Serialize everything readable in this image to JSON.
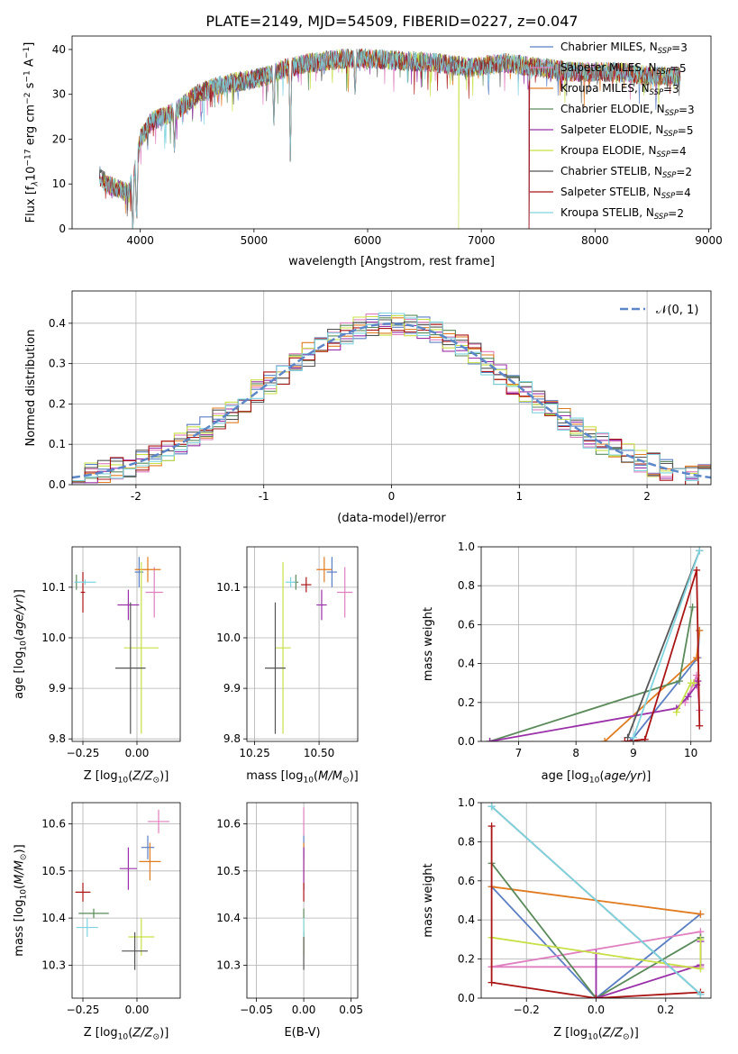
{
  "figure": {
    "title": "PLATE=2149, MJD=54509, FIBERID=0227, z=0.047"
  },
  "colors": {
    "Chabrier MILES": "#5b7fc4",
    "Salpeter MILES": "#e07fbf",
    "Kroupa MILES": "#e07b20",
    "Chabrier ELODIE": "#5a8a5a",
    "Salpeter ELODIE": "#9a30a8",
    "Kroupa ELODIE": "#c8e046",
    "Chabrier STELIB": "#555555",
    "Salpeter STELIB": "#aa1515",
    "Kroupa STELIB": "#7fd4e0",
    "normal": "#5b86c8",
    "grid": "#b0b0b0"
  },
  "chart_data": [
    {
      "id": "spectrum",
      "type": "line",
      "title": "PLATE=2149, MJD=54509, FIBERID=0227, z=0.047",
      "xlabel": "wavelength [Angstrom, rest frame]",
      "ylabel": "Flux [f_λ 10^-17 erg cm^-2 s^-1 A^-1]",
      "xlim": [
        3400,
        9020
      ],
      "ylim": [
        0,
        43
      ],
      "xticks": [
        4000,
        5000,
        6000,
        7000,
        8000,
        9000
      ],
      "yticks": [
        0,
        10,
        20,
        30,
        40
      ],
      "grid": false,
      "legend_position": "top-right",
      "x_range": [
        3640,
        8750
      ],
      "continuum_points": [
        [
          3640,
          12
        ],
        [
          3700,
          10
        ],
        [
          3800,
          9
        ],
        [
          3900,
          8
        ],
        [
          3960,
          14
        ],
        [
          4000,
          20
        ],
        [
          4100,
          24
        ],
        [
          4300,
          26
        ],
        [
          4500,
          30
        ],
        [
          4700,
          32
        ],
        [
          4900,
          33
        ],
        [
          5100,
          34
        ],
        [
          5300,
          36
        ],
        [
          5500,
          37
        ],
        [
          5800,
          38
        ],
        [
          6000,
          38
        ],
        [
          6300,
          37.5
        ],
        [
          6600,
          37
        ],
        [
          6900,
          36
        ],
        [
          7200,
          37
        ],
        [
          7500,
          36
        ],
        [
          7800,
          35
        ],
        [
          8200,
          35
        ],
        [
          8500,
          34
        ],
        [
          8750,
          34
        ]
      ],
      "features": [
        {
          "x": 3934,
          "min": -2
        },
        {
          "x": 3968,
          "min": 0
        },
        {
          "x": 4300,
          "min": 17
        },
        {
          "x": 5175,
          "min": 23
        },
        {
          "x": 5890,
          "min": 30
        },
        {
          "x": 5320,
          "min": 15
        }
      ],
      "series": [
        {
          "name": "Chabrier MILES",
          "legend": "Chabrier MILES, N",
          "nssp": "=3",
          "drop": null
        },
        {
          "name": "Salpeter MILES",
          "legend": "Salpeter MILES, N",
          "nssp": "=5",
          "drop": null
        },
        {
          "name": "Kroupa MILES",
          "legend": "Kroupa MILES, N",
          "nssp": "=3",
          "drop": 7420
        },
        {
          "name": "Chabrier ELODIE",
          "legend": "Chabrier ELODIE, N",
          "nssp": "=3",
          "drop": 7420
        },
        {
          "name": "Salpeter ELODIE",
          "legend": "Salpeter ELODIE, N",
          "nssp": "=5",
          "drop": 7420
        },
        {
          "name": "Kroupa ELODIE",
          "legend": "Kroupa ELODIE, N",
          "nssp": "=4",
          "drop": 6800
        },
        {
          "name": "Chabrier STELIB",
          "legend": "Chabrier STELIB, N",
          "nssp": "=2",
          "drop": null
        },
        {
          "name": "Salpeter STELIB",
          "legend": "Salpeter STELIB, N",
          "nssp": "=4",
          "drop": 7420
        },
        {
          "name": "Kroupa STELIB",
          "legend": "Kroupa STELIB, N",
          "nssp": "=2",
          "drop": null
        }
      ],
      "legend_subscript": "SSP"
    },
    {
      "id": "residuals",
      "type": "histogram",
      "xlabel": "(data-model)/error",
      "ylabel": "Normed distribution",
      "xlim": [
        -2.5,
        2.5
      ],
      "ylim": [
        0,
        0.48
      ],
      "xticks": [
        -2,
        -1,
        0,
        1,
        2
      ],
      "yticks": [
        0.0,
        0.1,
        0.2,
        0.3,
        0.4
      ],
      "grid": true,
      "legend_position": "top-right",
      "normal_label": "𝒩(0, 1)",
      "bin_width": 0.1
    },
    {
      "id": "age_vs_Z",
      "type": "scatter",
      "xlabel": "Z [log10(Z/Z⊙)]",
      "ylabel": "age  [log10(age/yr)]",
      "xlim": [
        -0.3,
        0.2
      ],
      "ylim": [
        9.795,
        10.18
      ],
      "xticks": [
        -0.25,
        0.0
      ],
      "xtick_labels": [
        "−0.25",
        "0.00"
      ],
      "yticks": [
        9.8,
        9.9,
        10.0,
        10.1
      ],
      "ytick_labels": [
        "9.8",
        "9.9",
        "10.0",
        "10.1"
      ],
      "grid": true,
      "points": [
        {
          "series": "Chabrier MILES",
          "x": 0.01,
          "y": 10.13,
          "xerr": 0.02,
          "yerr": 0.03
        },
        {
          "series": "Salpeter MILES",
          "x": 0.08,
          "y": 10.09,
          "xerr": 0.04,
          "yerr": 0.05
        },
        {
          "series": "Kroupa MILES",
          "x": 0.05,
          "y": 10.135,
          "xerr": 0.06,
          "yerr": 0.025
        },
        {
          "series": "Chabrier ELODIE",
          "x": -0.28,
          "y": 10.11,
          "xerr": 0.005,
          "yerr": 0.015
        },
        {
          "series": "Salpeter ELODIE",
          "x": -0.04,
          "y": 10.065,
          "xerr": 0.05,
          "yerr": 0.03
        },
        {
          "series": "Kroupa ELODIE",
          "x": 0.02,
          "y": 9.98,
          "xerr": 0.08,
          "yerr": 0.17
        },
        {
          "series": "Chabrier STELIB",
          "x": -0.03,
          "y": 9.94,
          "xerr": 0.07,
          "yerr": 0.13
        },
        {
          "series": "Salpeter STELIB",
          "x": -0.25,
          "y": 10.09,
          "xerr": 0.01,
          "yerr": 0.04
        },
        {
          "series": "Kroupa STELIB",
          "x": -0.24,
          "y": 10.11,
          "xerr": 0.05,
          "yerr": 0.005
        }
      ]
    },
    {
      "id": "age_vs_mass",
      "type": "scatter",
      "xlabel": "mass [log10(M/M⊙)]",
      "xlim": [
        10.22,
        10.65
      ],
      "ylim": [
        9.795,
        10.18
      ],
      "xticks": [
        10.25,
        10.5
      ],
      "xtick_labels": [
        "10.25",
        "10.50"
      ],
      "yticks": [
        9.8,
        9.9,
        10.0,
        10.1
      ],
      "ytick_labels": [
        "9.8",
        "9.9",
        "10.0",
        "10.1"
      ],
      "grid": true,
      "points": [
        {
          "series": "Chabrier MILES",
          "x": 10.55,
          "y": 10.13,
          "xerr": 0.02,
          "yerr": 0.03
        },
        {
          "series": "Salpeter MILES",
          "x": 10.6,
          "y": 10.09,
          "xerr": 0.03,
          "yerr": 0.05
        },
        {
          "series": "Kroupa MILES",
          "x": 10.52,
          "y": 10.135,
          "xerr": 0.03,
          "yerr": 0.025
        },
        {
          "series": "Chabrier ELODIE",
          "x": 10.41,
          "y": 10.11,
          "xerr": 0.01,
          "yerr": 0.015
        },
        {
          "series": "Salpeter ELODIE",
          "x": 10.51,
          "y": 10.065,
          "xerr": 0.02,
          "yerr": 0.03
        },
        {
          "series": "Kroupa ELODIE",
          "x": 10.36,
          "y": 9.98,
          "xerr": 0.03,
          "yerr": 0.17
        },
        {
          "series": "Chabrier STELIB",
          "x": 10.33,
          "y": 9.94,
          "xerr": 0.04,
          "yerr": 0.13
        },
        {
          "series": "Salpeter STELIB",
          "x": 10.45,
          "y": 10.105,
          "xerr": 0.02,
          "yerr": 0.015
        },
        {
          "series": "Kroupa STELIB",
          "x": 10.39,
          "y": 10.11,
          "xerr": 0.02,
          "yerr": 0.01
        }
      ]
    },
    {
      "id": "massweight_vs_age",
      "type": "line",
      "xlabel": "age  [log10(age/yr)]",
      "ylabel": "mass weight",
      "xlim": [
        6.35,
        10.35
      ],
      "ylim": [
        0.0,
        1.0
      ],
      "xticks": [
        7,
        8,
        9,
        10
      ],
      "yticks": [
        0.0,
        0.2,
        0.4,
        0.6,
        0.8,
        1.0
      ],
      "grid": true,
      "series": [
        {
          "name": "Chabrier MILES",
          "points": [
            [
              8.95,
              0.0
            ],
            [
              10.12,
              0.43
            ],
            [
              10.15,
              0.57
            ]
          ]
        },
        {
          "name": "Salpeter MILES",
          "points": [
            [
              9.9,
              0.2
            ],
            [
              10.05,
              0.3
            ],
            [
              10.1,
              0.34
            ],
            [
              10.15,
              0.16
            ]
          ]
        },
        {
          "name": "Kroupa MILES",
          "points": [
            [
              8.5,
              0.0
            ],
            [
              10.1,
              0.43
            ],
            [
              10.15,
              0.57
            ]
          ]
        },
        {
          "name": "Chabrier ELODIE",
          "points": [
            [
              6.5,
              0.0
            ],
            [
              9.8,
              0.31
            ],
            [
              10.03,
              0.69
            ]
          ]
        },
        {
          "name": "Salpeter ELODIE",
          "points": [
            [
              6.5,
              0.0
            ],
            [
              9.75,
              0.17
            ],
            [
              9.95,
              0.23
            ],
            [
              10.1,
              0.29
            ],
            [
              10.12,
              0.31
            ]
          ]
        },
        {
          "name": "Kroupa ELODIE",
          "points": [
            [
              9.75,
              0.15
            ],
            [
              10.0,
              0.3
            ],
            [
              10.05,
              0.3
            ]
          ]
        },
        {
          "name": "Chabrier STELIB",
          "points": [
            [
              8.9,
              0.02
            ],
            [
              10.15,
              0.98
            ]
          ]
        },
        {
          "name": "Salpeter STELIB",
          "points": [
            [
              8.85,
              0.0
            ],
            [
              9.2,
              0.01
            ],
            [
              10.1,
              0.88
            ],
            [
              10.15,
              0.08
            ]
          ]
        },
        {
          "name": "Kroupa STELIB",
          "points": [
            [
              9.0,
              0.02
            ],
            [
              10.15,
              0.98
            ]
          ]
        }
      ]
    },
    {
      "id": "mass_vs_Z",
      "type": "scatter",
      "xlabel": "Z [log10(Z/Z⊙)]",
      "ylabel": "mass [log10(M/M⊙)]",
      "xlim": [
        -0.3,
        0.2
      ],
      "ylim": [
        10.23,
        10.645
      ],
      "xticks": [
        -0.25,
        0.0
      ],
      "xtick_labels": [
        "−0.25",
        "0.00"
      ],
      "yticks": [
        10.3,
        10.4,
        10.5,
        10.6
      ],
      "ytick_labels": [
        "10.3",
        "10.4",
        "10.5",
        "10.6"
      ],
      "grid": true,
      "points": [
        {
          "series": "Chabrier MILES",
          "x": 0.05,
          "y": 10.55,
          "xerr": 0.03,
          "yerr": 0.025
        },
        {
          "series": "Salpeter MILES",
          "x": 0.1,
          "y": 10.605,
          "xerr": 0.05,
          "yerr": 0.025
        },
        {
          "series": "Kroupa MILES",
          "x": 0.06,
          "y": 10.52,
          "xerr": 0.05,
          "yerr": 0.04
        },
        {
          "series": "Chabrier ELODIE",
          "x": -0.2,
          "y": 10.41,
          "xerr": 0.07,
          "yerr": 0.01
        },
        {
          "series": "Salpeter ELODIE",
          "x": -0.04,
          "y": 10.505,
          "xerr": 0.04,
          "yerr": 0.045
        },
        {
          "series": "Kroupa ELODIE",
          "x": 0.02,
          "y": 10.36,
          "xerr": 0.06,
          "yerr": 0.04
        },
        {
          "series": "Chabrier STELIB",
          "x": -0.01,
          "y": 10.33,
          "xerr": 0.06,
          "yerr": 0.04
        },
        {
          "series": "Salpeter STELIB",
          "x": -0.25,
          "y": 10.455,
          "xerr": 0.035,
          "yerr": 0.02
        },
        {
          "series": "Kroupa STELIB",
          "x": -0.23,
          "y": 10.38,
          "xerr": 0.05,
          "yerr": 0.02
        }
      ]
    },
    {
      "id": "mass_vs_ebv",
      "type": "scatter",
      "xlabel": "E(B-V)",
      "xlim": [
        -0.06,
        0.057
      ],
      "ylim": [
        10.23,
        10.645
      ],
      "xticks": [
        -0.05,
        0.0,
        0.05
      ],
      "xtick_labels": [
        "−0.05",
        "0.00",
        "0.05"
      ],
      "yticks": [
        10.3,
        10.4,
        10.5,
        10.6
      ],
      "ytick_labels": [
        "10.3",
        "10.4",
        "10.5",
        "10.6"
      ],
      "grid": true,
      "points": [
        {
          "series": "Chabrier MILES",
          "x": 0.0,
          "y": 10.55,
          "xerr": 0,
          "yerr": 0.025
        },
        {
          "series": "Salpeter MILES",
          "x": 0.0,
          "y": 10.605,
          "xerr": 0,
          "yerr": 0.03
        },
        {
          "series": "Kroupa MILES",
          "x": 0.0,
          "y": 10.52,
          "xerr": 0,
          "yerr": 0.04
        },
        {
          "series": "Chabrier ELODIE",
          "x": 0.0,
          "y": 10.41,
          "xerr": 0,
          "yerr": 0.01
        },
        {
          "series": "Salpeter ELODIE",
          "x": 0.0,
          "y": 10.505,
          "xerr": 0,
          "yerr": 0.045
        },
        {
          "series": "Kroupa ELODIE",
          "x": 0.0,
          "y": 10.36,
          "xerr": 0,
          "yerr": 0.04
        },
        {
          "series": "Chabrier STELIB",
          "x": 0.0,
          "y": 10.33,
          "xerr": 0,
          "yerr": 0.04
        },
        {
          "series": "Salpeter STELIB",
          "x": 0.0,
          "y": 10.455,
          "xerr": 0,
          "yerr": 0.02
        },
        {
          "series": "Kroupa STELIB",
          "x": 0.0,
          "y": 10.38,
          "xerr": 0,
          "yerr": 0.02
        }
      ]
    },
    {
      "id": "massweight_vs_Z",
      "type": "line",
      "xlabel": "Z [log10(Z/Z⊙)]",
      "ylabel": "mass weight",
      "xlim": [
        -0.33,
        0.33
      ],
      "ylim": [
        0.0,
        1.0
      ],
      "xticks": [
        -0.2,
        0.0,
        0.2
      ],
      "xtick_labels": [
        "−0.2",
        "0.0",
        "0.2"
      ],
      "yticks": [
        0.0,
        0.2,
        0.4,
        0.6,
        0.8,
        1.0
      ],
      "grid": true,
      "series": [
        {
          "name": "Chabrier MILES",
          "points": [
            [
              -0.3,
              0.57
            ],
            [
              0.0,
              0.0
            ],
            [
              0.3,
              0.43
            ]
          ]
        },
        {
          "name": "Salpeter MILES",
          "points": [
            [
              -0.3,
              0.16
            ],
            [
              0.3,
              0.34
            ],
            [
              0.3,
              0.16
            ],
            [
              -0.3,
              0.16
            ]
          ]
        },
        {
          "name": "Kroupa MILES",
          "points": [
            [
              -0.3,
              0.57
            ],
            [
              0.3,
              0.43
            ]
          ]
        },
        {
          "name": "Chabrier ELODIE",
          "points": [
            [
              -0.3,
              0.69
            ],
            [
              0.0,
              0.0
            ],
            [
              0.3,
              0.31
            ]
          ]
        },
        {
          "name": "Salpeter ELODIE",
          "points": [
            [
              0.0,
              0.23
            ],
            [
              0.0,
              0.0
            ],
            [
              0.3,
              0.17
            ],
            [
              0.3,
              0.29
            ]
          ]
        },
        {
          "name": "Kroupa ELODIE",
          "points": [
            [
              -0.3,
              0.31
            ],
            [
              0.3,
              0.15
            ],
            [
              0.3,
              0.3
            ]
          ]
        },
        {
          "name": "Chabrier STELIB",
          "points": [
            [
              -0.3,
              0.98
            ],
            [
              0.3,
              0.02
            ]
          ]
        },
        {
          "name": "Salpeter STELIB",
          "points": [
            [
              -0.3,
              0.88
            ],
            [
              -0.3,
              0.08
            ],
            [
              0.0,
              0.0
            ],
            [
              0.3,
              0.03
            ]
          ]
        },
        {
          "name": "Kroupa STELIB",
          "points": [
            [
              -0.3,
              0.98
            ],
            [
              0.3,
              0.02
            ]
          ]
        }
      ]
    }
  ]
}
